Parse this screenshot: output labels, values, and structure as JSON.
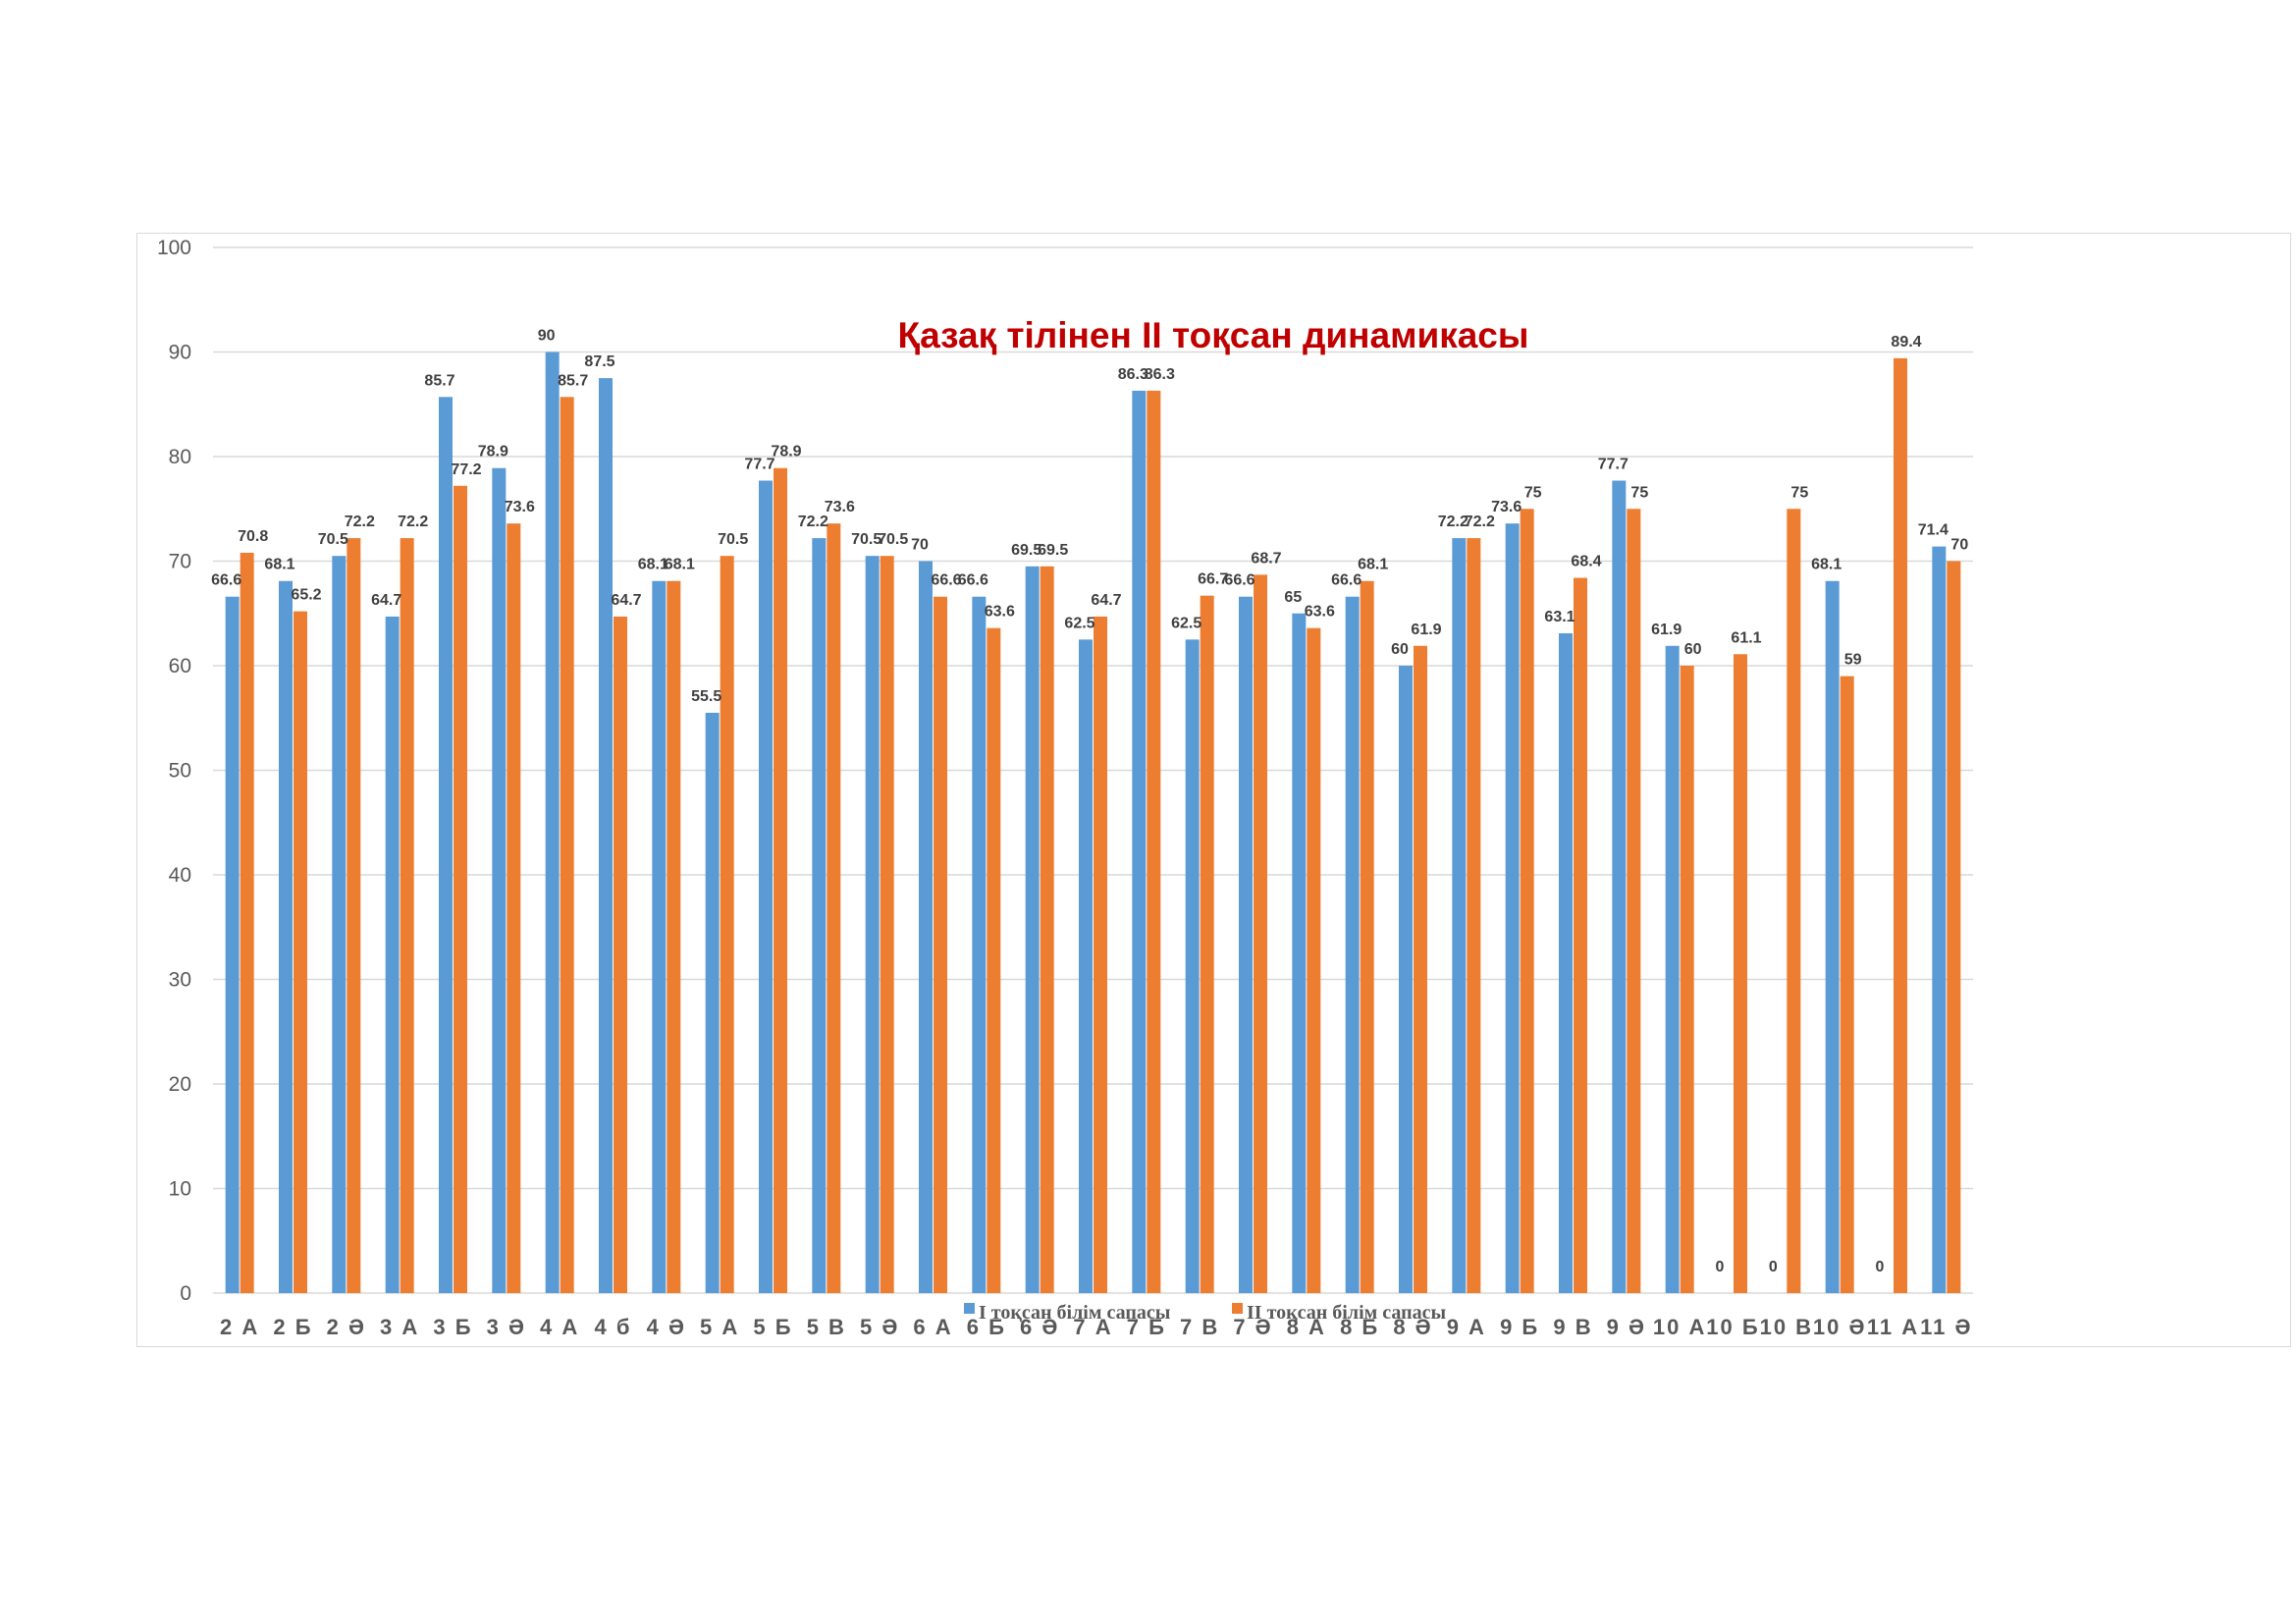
{
  "chart_data": {
    "type": "bar",
    "title": "Қазақ тілінен ІІ тоқсан динамикасы",
    "xlabel": "",
    "ylabel": "",
    "ylim": [
      0,
      100
    ],
    "yticks": [
      0,
      10,
      20,
      30,
      40,
      50,
      60,
      70,
      80,
      90,
      100
    ],
    "grid": true,
    "legend_position": "bottom",
    "categories": [
      "2 А",
      "2 Б",
      "2 Ә",
      "3 А",
      "3 Б",
      "3 Ә",
      "4 А",
      "4 б",
      "4 Ә",
      "5 А",
      "5 Б",
      "5 В",
      "5 Ә",
      "6 А",
      "6 Б",
      "6 Ә",
      "7 А",
      "7 Б",
      "7 В",
      "7 Ә",
      "8 А",
      "8 Б",
      "8 Ә",
      "9 А",
      "9 Б",
      "9 В",
      "9 Ә",
      "10 А",
      "10 Б",
      "10 В",
      "10 Ә",
      "11 А",
      "11 Ә"
    ],
    "series": [
      {
        "name": "І тоқсан білім сапасы",
        "color": "#5b9bd5",
        "values": [
          66.6,
          68.1,
          70.5,
          64.7,
          85.7,
          78.9,
          90,
          87.5,
          68.1,
          55.5,
          77.7,
          72.2,
          70.5,
          70,
          66.6,
          69.5,
          62.5,
          86.3,
          62.5,
          66.6,
          65,
          66.6,
          60,
          72.2,
          73.6,
          63.1,
          77.7,
          61.9,
          0,
          0,
          68.1,
          0,
          71.4
        ]
      },
      {
        "name": "ІІ тоқсан білім сапасы",
        "color": "#ed7d31",
        "values": [
          70.8,
          65.2,
          72.2,
          72.2,
          77.2,
          73.6,
          85.7,
          64.7,
          68.1,
          70.5,
          78.9,
          73.6,
          70.5,
          66.6,
          63.6,
          69.5,
          64.7,
          86.3,
          66.7,
          68.7,
          63.6,
          68.1,
          61.9,
          72.2,
          75,
          68.4,
          75,
          60,
          61.1,
          75,
          59,
          89.4,
          70
        ]
      }
    ]
  }
}
